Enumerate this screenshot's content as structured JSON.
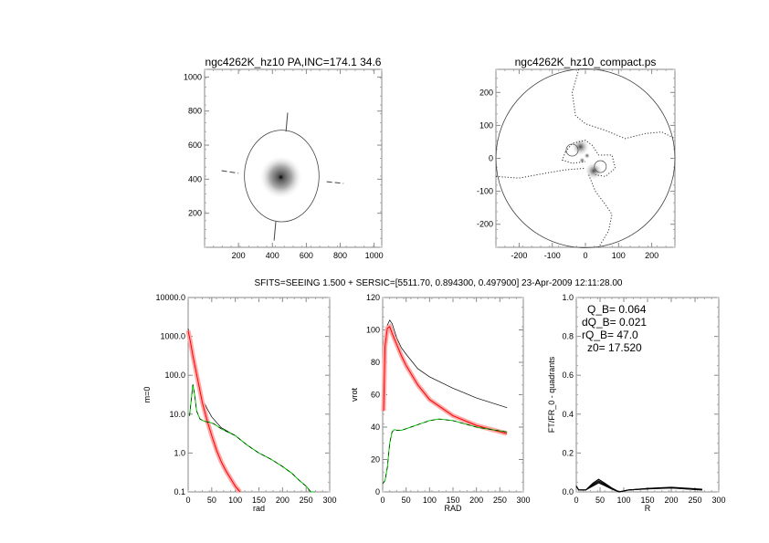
{
  "header": "SFITS=SEEING 1.500 + SERSIC=[5511.70, 0.894300, 0.497900]  23-Apr-2009 12:11:28.00",
  "colors": {
    "total": "#000000",
    "sersic": "#ff0000",
    "disk": "#00cc00",
    "data": "#666666"
  },
  "chart_data": [
    {
      "type": "image",
      "title": "ngc4262K_hz10 PA,INC=174.1 34.6",
      "xlim": [
        0,
        1045
      ],
      "ylim": [
        0,
        1045
      ],
      "xticks": [
        "200",
        "400",
        "600",
        "800",
        "1000"
      ],
      "xtick_values": [
        200,
        400,
        600,
        800,
        1000
      ],
      "yticks": [
        "200",
        "400",
        "600",
        "800",
        "1000"
      ],
      "ytick_values": [
        200,
        400,
        600,
        800,
        1000
      ],
      "center": [
        450,
        412
      ],
      "ellipse": {
        "cx": 455,
        "cy": 419,
        "rx": 220,
        "ry": 269
      },
      "major_axis_segments": [
        [
          [
            480,
            680
          ],
          [
            490,
            790
          ]
        ],
        [
          [
            420,
            150
          ],
          [
            410,
            40
          ]
        ]
      ],
      "minor_axis_segments": [
        [
          [
            100,
            450
          ],
          [
            200,
            435
          ]
        ],
        [
          [
            720,
            385
          ],
          [
            820,
            375
          ]
        ]
      ]
    },
    {
      "type": "contour",
      "title": "ngc4262K_hz10_compact.ps",
      "xlim": [
        -270,
        270
      ],
      "ylim": [
        -270,
        270
      ],
      "xticks": [
        "-200",
        "-100",
        "0",
        "100",
        "200"
      ],
      "xtick_values": [
        -200,
        -100,
        0,
        100,
        200
      ],
      "yticks": [
        "-200",
        "-100",
        "0",
        "100",
        "200"
      ],
      "ytick_values": [
        -200,
        -100,
        0,
        100,
        200
      ],
      "circle_radius": 270,
      "blobs": [
        [
          -15,
          35
        ],
        [
          25,
          -38
        ],
        [
          5,
          8
        ],
        [
          -10,
          -6
        ]
      ],
      "dotted_contours": [
        [
          [
            -20,
            270
          ],
          [
            -40,
            200
          ],
          [
            -30,
            130
          ],
          [
            0,
            105
          ],
          [
            60,
            85
          ],
          [
            120,
            60
          ],
          [
            180,
            75
          ],
          [
            230,
            80
          ],
          [
            270,
            60
          ]
        ],
        [
          [
            -270,
            -55
          ],
          [
            -200,
            -60
          ],
          [
            -120,
            -45
          ],
          [
            -60,
            -35
          ],
          [
            0,
            -30
          ]
        ],
        [
          [
            10,
            -50
          ],
          [
            30,
            -100
          ],
          [
            60,
            -140
          ],
          [
            80,
            -170
          ],
          [
            70,
            -220
          ],
          [
            40,
            -270
          ]
        ],
        [
          [
            -60,
            20
          ],
          [
            -40,
            45
          ],
          [
            0,
            55
          ],
          [
            20,
            40
          ],
          [
            40,
            10
          ],
          [
            80,
            10
          ],
          [
            90,
            -30
          ],
          [
            60,
            -55
          ],
          [
            30,
            -50
          ]
        ],
        [
          [
            -60,
            20
          ],
          [
            -70,
            -5
          ],
          [
            -40,
            -15
          ],
          [
            0,
            -10
          ]
        ]
      ]
    },
    {
      "type": "line",
      "scale": "log",
      "xlabel": "rad",
      "ylabel": "m=0",
      "xlim": [
        0,
        300
      ],
      "ylim": [
        0.1,
        10000
      ],
      "xticks": [
        "0",
        "50",
        "100",
        "150",
        "200",
        "250",
        "300"
      ],
      "xtick_values": [
        0,
        50,
        100,
        150,
        200,
        250,
        300
      ],
      "yticks": [
        "0.1",
        "1.0",
        "10.0",
        "100.0",
        "1000.0",
        "10000.0"
      ],
      "ytick_values": [
        0.1,
        1,
        10,
        100,
        1000,
        10000
      ],
      "series": [
        {
          "name": "total",
          "x": [
            0,
            5,
            10,
            15,
            20,
            25,
            30,
            40,
            50,
            70,
            100,
            125,
            150,
            175,
            200,
            220,
            235,
            250,
            260,
            268
          ],
          "y": [
            1600,
            700,
            360,
            160,
            75,
            40,
            25,
            14,
            8.5,
            4.5,
            2.8,
            1.6,
            1.0,
            0.7,
            0.45,
            0.3,
            0.2,
            0.14,
            0.1,
            0.1
          ]
        },
        {
          "name": "sersic",
          "x": [
            0,
            5,
            10,
            15,
            20,
            25,
            30,
            40,
            50,
            60,
            70,
            80,
            90,
            100,
            110
          ],
          "y": [
            1400,
            700,
            320,
            160,
            80,
            40,
            20,
            7,
            2.8,
            1.2,
            0.6,
            0.35,
            0.22,
            0.14,
            0.1
          ]
        },
        {
          "name": "disk",
          "x": [
            3,
            6,
            10,
            14,
            18,
            25,
            35,
            45,
            55,
            70,
            100,
            125,
            150,
            175,
            200,
            220,
            235,
            250,
            260,
            268
          ],
          "y": [
            9,
            20,
            58,
            30,
            12,
            7.5,
            6.5,
            6.2,
            5.6,
            4.2,
            2.8,
            1.6,
            1.0,
            0.7,
            0.45,
            0.3,
            0.2,
            0.14,
            0.1,
            0.1
          ]
        }
      ]
    },
    {
      "type": "line",
      "xlabel": "RAD",
      "ylabel": "vrot",
      "xlim": [
        0,
        300
      ],
      "ylim": [
        0,
        120
      ],
      "xticks": [
        "0",
        "50",
        "100",
        "150",
        "200",
        "250",
        "300"
      ],
      "xtick_values": [
        0,
        50,
        100,
        150,
        200,
        250,
        300
      ],
      "yticks": [
        "0",
        "20",
        "40",
        "60",
        "80",
        "100",
        "120"
      ],
      "ytick_values": [
        0,
        20,
        40,
        60,
        80,
        100,
        120
      ],
      "series": [
        {
          "name": "total",
          "x": [
            2,
            5,
            10,
            15,
            20,
            30,
            40,
            50,
            75,
            100,
            150,
            200,
            265
          ],
          "y": [
            50,
            85,
            103,
            106,
            104,
            95,
            89,
            85,
            76,
            71,
            64,
            58,
            52
          ]
        },
        {
          "name": "sersic",
          "x": [
            2,
            5,
            10,
            15,
            20,
            30,
            40,
            50,
            75,
            100,
            150,
            200,
            265
          ],
          "y": [
            50,
            90,
            101,
            102,
            98,
            91,
            84,
            78,
            66,
            57,
            47,
            41,
            36
          ]
        },
        {
          "name": "disk",
          "x": [
            0,
            5,
            10,
            15,
            20,
            25,
            30,
            40,
            60,
            80,
            100,
            120,
            150,
            200,
            265
          ],
          "y": [
            5,
            7,
            15,
            30,
            37,
            38.5,
            38,
            38,
            40,
            42,
            44,
            45,
            44,
            40,
            37
          ]
        }
      ]
    },
    {
      "type": "line",
      "xlabel": "R",
      "ylabel": "FT/FR_0 - quadrants",
      "xlim": [
        0,
        300
      ],
      "ylim": [
        0,
        1
      ],
      "xticks": [
        "0",
        "50",
        "100",
        "150",
        "200",
        "250",
        "300"
      ],
      "xtick_values": [
        0,
        50,
        100,
        150,
        200,
        250,
        300
      ],
      "yticks": [
        "0.0",
        "0.2",
        "0.4",
        "0.6",
        "0.8",
        "1.0"
      ],
      "ytick_values": [
        0,
        0.2,
        0.4,
        0.6,
        0.8,
        1.0
      ],
      "annotations": [
        "Q_B=  0.064",
        "dQ_B=  0.021",
        "rQ_B=   47.0",
        "z0= 17.520"
      ],
      "series": [
        {
          "name": "q1",
          "x": [
            0,
            5,
            20,
            35,
            47,
            60,
            75,
            90,
            110,
            150,
            200,
            265
          ],
          "y": [
            0.03,
            0.01,
            0.01,
            0.045,
            0.065,
            0.045,
            0.02,
            0.0,
            0.01,
            0.015,
            0.02,
            0.01
          ]
        },
        {
          "name": "q2",
          "x": [
            0,
            5,
            20,
            35,
            47,
            60,
            75,
            90,
            110,
            150,
            200,
            265
          ],
          "y": [
            0.03,
            0.01,
            0.01,
            0.04,
            0.058,
            0.04,
            0.018,
            0.0,
            0.01,
            0.016,
            0.021,
            0.01
          ]
        },
        {
          "name": "q3",
          "x": [
            0,
            5,
            20,
            35,
            47,
            60,
            75,
            90,
            110,
            150,
            200,
            265
          ],
          "y": [
            0.03,
            0.01,
            0.01,
            0.035,
            0.052,
            0.036,
            0.016,
            0.0,
            0.01,
            0.017,
            0.022,
            0.012
          ]
        },
        {
          "name": "q4",
          "x": [
            0,
            5,
            20,
            35,
            47,
            60,
            75,
            90,
            110,
            150,
            200,
            265
          ],
          "y": [
            0.03,
            0.01,
            0.01,
            0.03,
            0.046,
            0.032,
            0.014,
            0.0,
            0.01,
            0.018,
            0.024,
            0.014
          ]
        }
      ]
    }
  ]
}
